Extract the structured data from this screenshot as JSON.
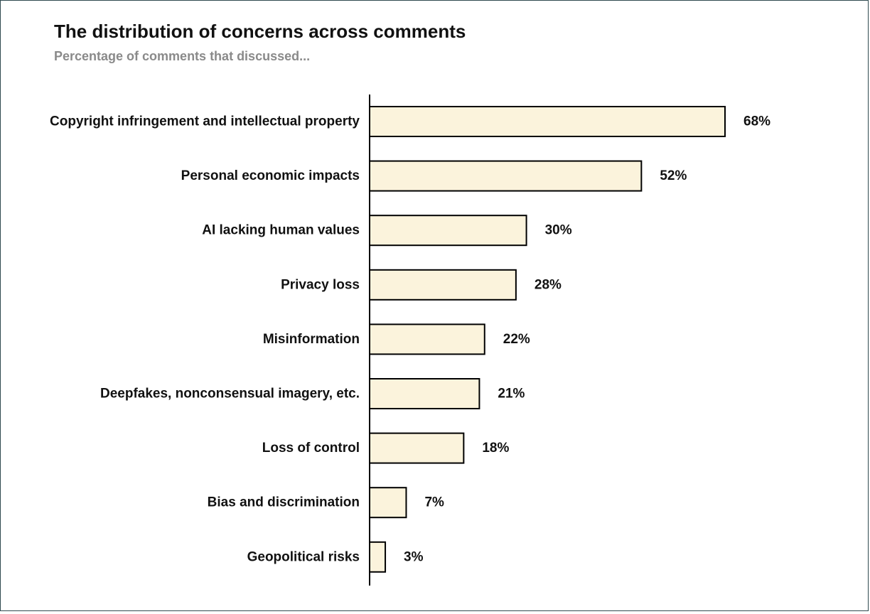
{
  "header": {
    "title": "The distribution of concerns across comments",
    "subtitle": "Percentage of comments that discussed..."
  },
  "chart_data": {
    "type": "bar",
    "orientation": "horizontal",
    "title": "The distribution of concerns across comments",
    "subtitle": "Percentage of comments that discussed...",
    "xlabel": "",
    "ylabel": "",
    "unit": "%",
    "grid": false,
    "legend": "none",
    "bar_fill": "#fbf3dc",
    "bar_stroke": "#000000",
    "categories": [
      "Copyright infringement and intellectual property",
      "Personal economic impacts",
      "AI lacking human values",
      "Privacy loss",
      "Misinformation",
      "Deepfakes, nonconsensual imagery, etc.",
      "Loss of control",
      "Bias and discrimination",
      "Geopolitical risks"
    ],
    "values": [
      68,
      52,
      30,
      28,
      22,
      21,
      18,
      7,
      3
    ],
    "value_labels": [
      "68%",
      "52%",
      "30%",
      "28%",
      "22%",
      "21%",
      "18%",
      "7%",
      "3%"
    ]
  }
}
